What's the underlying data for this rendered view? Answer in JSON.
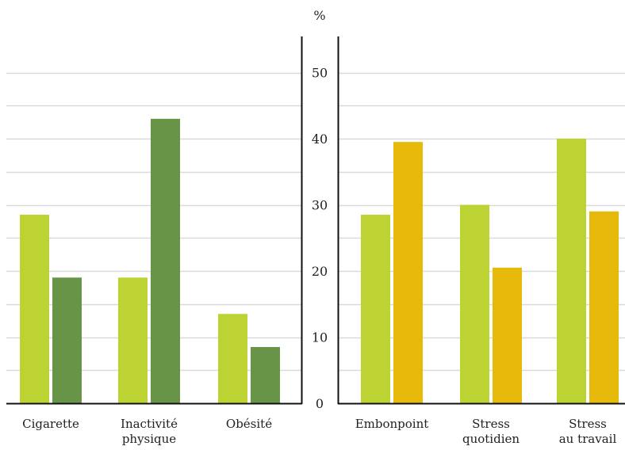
{
  "chart_data": [
    {
      "type": "bar",
      "categories": [
        "Cigarette",
        "Inactivité physique",
        "Obésité"
      ],
      "category_lines": [
        [
          "Cigarette"
        ],
        [
          "Inactivité",
          "physique"
        ],
        [
          "Obésité"
        ]
      ],
      "series": [
        {
          "values": [
            28.5,
            19,
            13.5
          ],
          "color": "#bdd333"
        },
        {
          "values": [
            19,
            43,
            8.5
          ],
          "color": "#689447"
        }
      ],
      "ylim": [
        0,
        55
      ],
      "grid": true
    },
    {
      "type": "bar",
      "categories": [
        "Embonpoint",
        "Stress quotidien",
        "Stress au travail"
      ],
      "category_lines": [
        [
          "Embonpoint"
        ],
        [
          "Stress",
          "quotidien"
        ],
        [
          "Stress",
          "au travail"
        ]
      ],
      "series": [
        {
          "values": [
            28.5,
            30,
            40
          ],
          "color": "#bdd333"
        },
        {
          "values": [
            39.5,
            20.5,
            29
          ],
          "color": "#e6b90b"
        }
      ],
      "ylim": [
        0,
        55
      ],
      "grid": true
    }
  ],
  "axis": {
    "unit": "%",
    "ticks": [
      0,
      10,
      20,
      30,
      40,
      50
    ]
  }
}
